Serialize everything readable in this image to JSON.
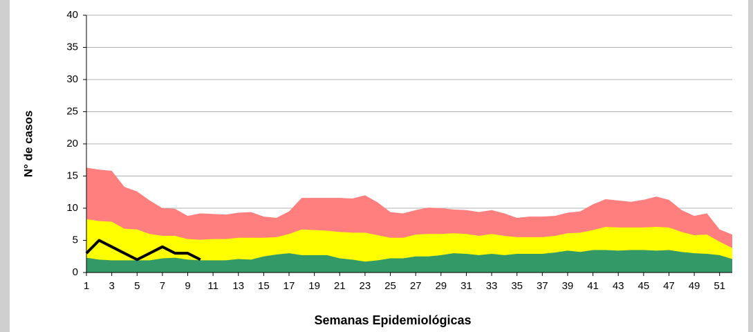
{
  "chart_data": {
    "type": "area",
    "y_label": "N° de casos",
    "x_label": "Semanas Epidemiológicas",
    "x": [
      1,
      2,
      3,
      4,
      5,
      6,
      7,
      8,
      9,
      10,
      11,
      12,
      13,
      14,
      15,
      16,
      17,
      18,
      19,
      20,
      21,
      22,
      23,
      24,
      25,
      26,
      27,
      28,
      29,
      30,
      31,
      32,
      33,
      34,
      35,
      36,
      37,
      38,
      39,
      40,
      41,
      42,
      43,
      44,
      45,
      46,
      47,
      48,
      49,
      50,
      51,
      52
    ],
    "xlim": [
      1,
      52
    ],
    "xticks": [
      1,
      3,
      5,
      7,
      9,
      11,
      13,
      15,
      17,
      19,
      21,
      23,
      25,
      27,
      29,
      31,
      33,
      35,
      37,
      39,
      41,
      43,
      45,
      47,
      49,
      51
    ],
    "ylim": [
      0,
      40
    ],
    "yticks": [
      0,
      5,
      10,
      15,
      20,
      25,
      30,
      35,
      40
    ],
    "grid": true,
    "series": [
      {
        "color": "#ff7f7f",
        "values": [
          16.3,
          16,
          15.8,
          13.3,
          12.6,
          11.2,
          10,
          9.9,
          8.8,
          9.2,
          9.1,
          9,
          9.3,
          9.4,
          8.7,
          8.5,
          9.5,
          11.6,
          11.6,
          11.6,
          11.6,
          11.5,
          12,
          10.9,
          9.4,
          9.2,
          9.7,
          10.1,
          10,
          9.8,
          9.7,
          9.4,
          9.7,
          9.2,
          8.5,
          8.7,
          8.7,
          8.8,
          9.3,
          9.5,
          10.6,
          11.4,
          11.2,
          11,
          11.3,
          11.8,
          11.3,
          9.7,
          8.8,
          9.2,
          6.7,
          5.9
        ]
      },
      {
        "color": "#ffff00",
        "values": [
          8.3,
          8,
          7.9,
          6.8,
          6.7,
          6,
          5.7,
          5.7,
          5.2,
          5.1,
          5.2,
          5.2,
          5.4,
          5.4,
          5.4,
          5.5,
          6,
          6.7,
          6.6,
          6.5,
          6.3,
          6.2,
          6.2,
          5.8,
          5.4,
          5.4,
          5.9,
          6,
          6,
          6.1,
          6,
          5.7,
          6,
          5.7,
          5.5,
          5.5,
          5.5,
          5.7,
          6.1,
          6.2,
          6.6,
          7.1,
          7,
          7,
          7,
          7.1,
          7,
          6.3,
          5.8,
          5.9,
          4.8,
          3.8
        ]
      },
      {
        "color": "#339966",
        "values": [
          2.3,
          2,
          1.9,
          1.9,
          1.9,
          1.9,
          2.2,
          2.3,
          2,
          1.9,
          1.9,
          1.9,
          2.1,
          2,
          2.5,
          2.8,
          3,
          2.7,
          2.7,
          2.7,
          2.2,
          2,
          1.7,
          1.9,
          2.2,
          2.2,
          2.5,
          2.5,
          2.7,
          3,
          2.9,
          2.7,
          2.9,
          2.7,
          2.9,
          2.9,
          2.9,
          3.1,
          3.4,
          3.2,
          3.5,
          3.5,
          3.4,
          3.5,
          3.5,
          3.4,
          3.5,
          3.2,
          3,
          2.9,
          2.7,
          2.1
        ]
      },
      {
        "type": "line",
        "color": "#000000",
        "values": [
          3,
          5,
          4,
          3,
          2,
          3,
          4,
          3,
          3,
          2,
          null,
          null,
          null,
          null,
          null,
          null,
          null,
          null,
          null,
          null,
          null,
          null,
          null,
          null,
          null,
          null,
          null,
          null,
          null,
          null,
          null,
          null,
          null,
          null,
          null,
          null,
          null,
          null,
          null,
          null,
          null,
          null,
          null,
          null,
          null,
          null,
          null,
          null,
          null,
          null,
          null,
          null
        ]
      }
    ]
  }
}
